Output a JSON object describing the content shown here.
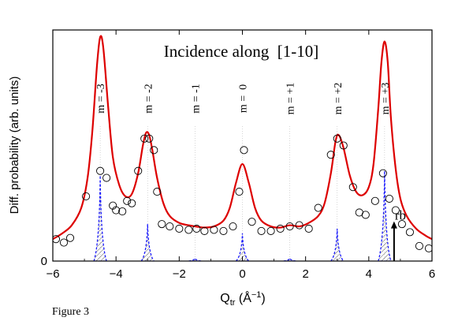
{
  "chart_data": {
    "type": "line",
    "title": "Incidence along  [1-10]",
    "xlabel": "Q",
    "xlabel_sub": "tr",
    "xlabel_unit": " (Å",
    "xlabel_unit_sup": "−1",
    "xlabel_close": ")",
    "ylabel": "Diff. probability (arb. units)",
    "xlim": [
      -6,
      6
    ],
    "ylim": [
      0,
      1.0
    ],
    "xticks": [
      -6,
      -4,
      -2,
      0,
      2,
      4,
      6
    ],
    "xtick_labels": [
      "−6",
      "−4",
      "−2",
      "0",
      "2",
      "4",
      "6"
    ],
    "ytick_labels": [
      "0"
    ],
    "grid": false,
    "orders": [
      {
        "label": "m = -3",
        "x": -4.5
      },
      {
        "label": "m = -2",
        "x": -3.0
      },
      {
        "label": "m = -1",
        "x": -1.5
      },
      {
        "label": "m =  0",
        "x": 0.0
      },
      {
        "label": "m = +1",
        "x": 1.5
      },
      {
        "label": "m = +2",
        "x": 3.0
      },
      {
        "label": "m = +3",
        "x": 4.5
      }
    ],
    "curve_color": "#dd0000",
    "curve": {
      "x": [
        -6.0,
        -5.7,
        -5.4,
        -5.1,
        -4.9,
        -4.75,
        -4.6,
        -4.5,
        -4.4,
        -4.25,
        -4.1,
        -3.9,
        -3.7,
        -3.5,
        -3.3,
        -3.15,
        -3.05,
        -2.95,
        -2.85,
        -2.7,
        -2.5,
        -2.3,
        -2.0,
        -1.7,
        -1.5,
        -1.2,
        -0.9,
        -0.6,
        -0.4,
        -0.2,
        0.0,
        0.2,
        0.4,
        0.6,
        0.9,
        1.2,
        1.5,
        1.8,
        2.1,
        2.4,
        2.6,
        2.8,
        2.95,
        3.05,
        3.2,
        3.4,
        3.6,
        3.8,
        4.0,
        4.15,
        4.3,
        4.4,
        4.5,
        4.6,
        4.7,
        4.85,
        5.0,
        5.2,
        5.5,
        5.8,
        6.0
      ],
      "y": [
        0.095,
        0.12,
        0.155,
        0.23,
        0.36,
        0.56,
        0.85,
        0.97,
        0.92,
        0.67,
        0.45,
        0.33,
        0.28,
        0.29,
        0.38,
        0.5,
        0.555,
        0.545,
        0.48,
        0.36,
        0.25,
        0.195,
        0.165,
        0.155,
        0.15,
        0.145,
        0.15,
        0.175,
        0.23,
        0.34,
        0.42,
        0.34,
        0.23,
        0.175,
        0.15,
        0.145,
        0.155,
        0.15,
        0.165,
        0.195,
        0.25,
        0.38,
        0.52,
        0.545,
        0.49,
        0.37,
        0.3,
        0.285,
        0.32,
        0.42,
        0.66,
        0.86,
        0.95,
        0.86,
        0.62,
        0.4,
        0.27,
        0.195,
        0.14,
        0.11,
        0.095
      ]
    },
    "scatter": {
      "x": [
        -5.9,
        -5.65,
        -5.45,
        -4.95,
        -4.5,
        -4.3,
        -4.1,
        -4.0,
        -3.8,
        -3.65,
        -3.5,
        -3.3,
        -3.1,
        -2.95,
        -2.8,
        -2.7,
        -2.55,
        -2.3,
        -2.0,
        -1.7,
        -1.45,
        -1.2,
        -0.9,
        -0.6,
        -0.3,
        -0.1,
        0.05,
        0.3,
        0.6,
        0.9,
        1.2,
        1.5,
        1.8,
        2.1,
        2.4,
        2.8,
        3.0,
        3.2,
        3.5,
        3.7,
        3.9,
        4.2,
        4.45,
        4.65,
        4.85,
        5.05,
        5.3,
        5.6,
        5.9
      ],
      "y": [
        0.095,
        0.08,
        0.1,
        0.28,
        0.39,
        0.36,
        0.24,
        0.22,
        0.215,
        0.26,
        0.25,
        0.39,
        0.53,
        0.53,
        0.48,
        0.3,
        0.16,
        0.15,
        0.14,
        0.135,
        0.14,
        0.13,
        0.135,
        0.13,
        0.15,
        0.3,
        0.48,
        0.17,
        0.13,
        0.13,
        0.14,
        0.15,
        0.155,
        0.14,
        0.23,
        0.46,
        0.53,
        0.5,
        0.32,
        0.21,
        0.2,
        0.26,
        0.38,
        0.27,
        0.22,
        0.16,
        0.125,
        0.065,
        0.055
      ]
    },
    "lobes": [
      {
        "x": -4.5,
        "h": 0.37
      },
      {
        "x": -3.0,
        "h": 0.16
      },
      {
        "x": -1.5,
        "h": 0.012
      },
      {
        "x": 0.0,
        "h": 0.12
      },
      {
        "x": 1.5,
        "h": 0.012
      },
      {
        "x": 3.0,
        "h": 0.14
      },
      {
        "x": 4.5,
        "h": 0.39
      }
    ],
    "lobe_color": "#1a1aff",
    "annotation": {
      "text": "rb",
      "x": 4.8,
      "y_tail": 0.0,
      "y_head": 0.165
    }
  },
  "caption": "Figure 3"
}
